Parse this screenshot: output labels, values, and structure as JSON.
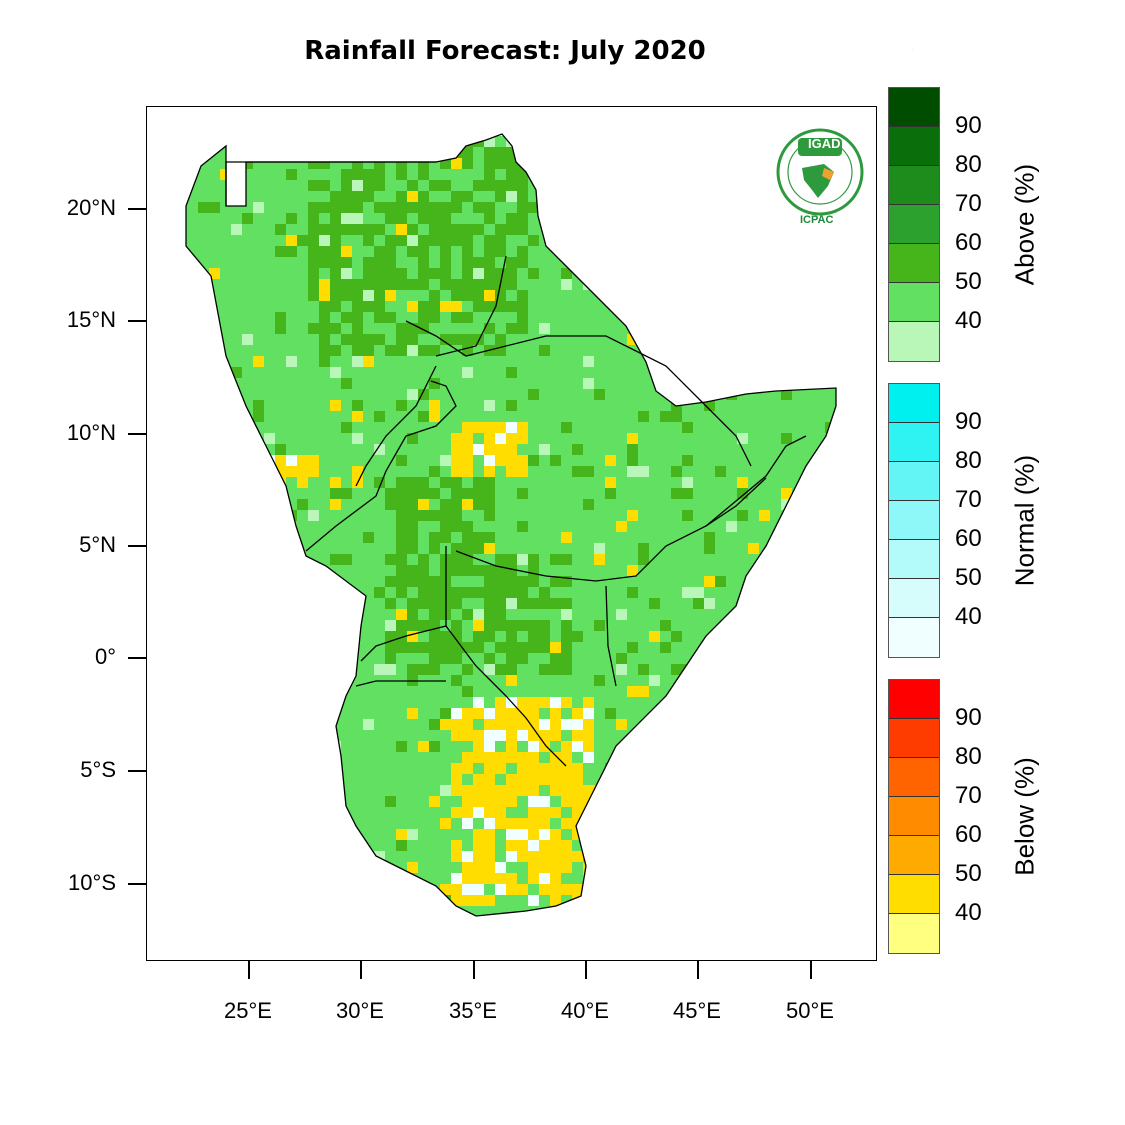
{
  "title": "Rainfall Forecast: July 2020",
  "map": {
    "lat_ticks": [
      "20°N",
      "15°N",
      "10°N",
      "5°N",
      "0°",
      "5°S",
      "10°S"
    ],
    "lon_ticks": [
      "25°E",
      "30°E",
      "35°E",
      "40°E",
      "45°E",
      "50°E"
    ],
    "logo": {
      "top_text": "IGAD",
      "bottom_text": "ICPAC",
      "icon": "igad-icpac-logo"
    }
  },
  "legends": {
    "above": {
      "title": "Above (%)",
      "values": [
        "90",
        "80",
        "70",
        "60",
        "50",
        "40"
      ],
      "colors": [
        "#004d00",
        "#0a6e0a",
        "#1d8c1d",
        "#2da12d",
        "#46b41b",
        "#62e062",
        "#b9f7b9"
      ]
    },
    "normal": {
      "title": "Normal (%)",
      "values": [
        "90",
        "80",
        "70",
        "60",
        "50",
        "40"
      ],
      "colors": [
        "#00f0f0",
        "#2ff2f2",
        "#63f5f5",
        "#8ef7f7",
        "#b3fafa",
        "#d6fcfc",
        "#f0ffff"
      ]
    },
    "below": {
      "title": "Below (%)",
      "values": [
        "90",
        "80",
        "70",
        "60",
        "50",
        "40"
      ],
      "colors": [
        "#ff0000",
        "#ff3c00",
        "#ff6400",
        "#ff8c00",
        "#ffaa00",
        "#ffdd00",
        "#ffff80"
      ]
    }
  }
}
